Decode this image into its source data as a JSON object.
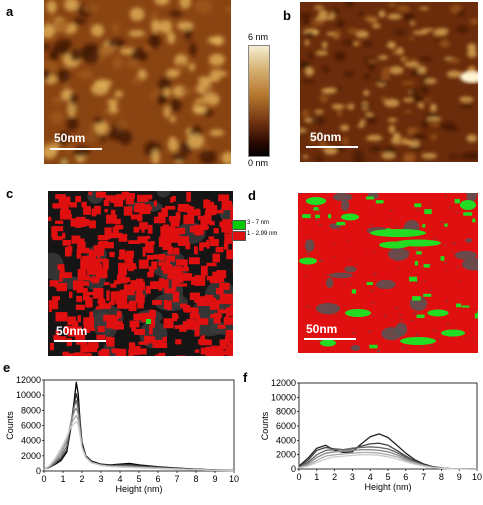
{
  "panels": {
    "a": "a",
    "b": "b",
    "c": "c",
    "d": "d",
    "e": "e",
    "f": "f"
  },
  "scale_bar_label": "50nm",
  "colorbar": {
    "top_label": "6 nm",
    "bottom_label": "0 nm"
  },
  "legend": [
    {
      "label": "3 - 7 nm",
      "color": "#00cc00"
    },
    {
      "label": "1 - 2.99 nm",
      "color": "#dd1111"
    }
  ],
  "afm_colors": {
    "dark": "#3a1505",
    "mid": "#a0581d",
    "bright": "#e7b85e"
  },
  "mask_colors": {
    "red": "#e01010",
    "green": "#22dd22",
    "gray": "#555555"
  },
  "chart_data": [
    {
      "type": "line",
      "panel": "e",
      "xlabel": "Height (nm)",
      "ylabel": "Counts",
      "xlim": [
        0,
        10
      ],
      "ylim": [
        0,
        12000
      ],
      "xticks": [
        0,
        1,
        2,
        3,
        4,
        5,
        6,
        7,
        8,
        9,
        10
      ],
      "yticks": [
        0,
        2000,
        4000,
        6000,
        8000,
        10000,
        12000
      ],
      "x": [
        0,
        0.3,
        0.6,
        0.9,
        1.2,
        1.4,
        1.6,
        1.7,
        1.8,
        1.9,
        2.0,
        2.2,
        2.5,
        3.0,
        3.5,
        4.0,
        4.5,
        5.0,
        6.0,
        7.0,
        8.0,
        9.0,
        10.0
      ],
      "series": [
        {
          "color": "#000000",
          "values": [
            300,
            500,
            900,
            1400,
            2500,
            5500,
            9500,
            11700,
            10200,
            6500,
            3800,
            2000,
            1300,
            900,
            800,
            900,
            1000,
            800,
            550,
            400,
            250,
            150,
            100
          ]
        },
        {
          "color": "#333333",
          "values": [
            250,
            500,
            1000,
            1600,
            2800,
            6000,
            9000,
            10200,
            9000,
            6000,
            3500,
            1900,
            1200,
            850,
            750,
            800,
            850,
            700,
            500,
            350,
            220,
            140,
            90
          ]
        },
        {
          "color": "#666666",
          "values": [
            250,
            550,
            1100,
            1900,
            3300,
            6200,
            8600,
            9300,
            8200,
            5600,
            3300,
            1800,
            1150,
            800,
            700,
            700,
            700,
            600,
            450,
            320,
            200,
            120,
            80
          ]
        },
        {
          "color": "#8a8a8a",
          "values": [
            200,
            600,
            1300,
            2300,
            3900,
            6300,
            7900,
            8300,
            7500,
            5300,
            3200,
            1800,
            1100,
            780,
            650,
            620,
            600,
            520,
            400,
            300,
            190,
            110,
            70
          ]
        },
        {
          "color": "#b0b0b0",
          "values": [
            200,
            700,
            1500,
            2700,
            4300,
            6000,
            7000,
            7300,
            6700,
            5000,
            3100,
            1800,
            1100,
            750,
            600,
            550,
            520,
            450,
            350,
            260,
            170,
            100,
            60
          ]
        },
        {
          "color": "#cccccc",
          "values": [
            180,
            750,
            1700,
            3000,
            4500,
            5700,
            6300,
            6500,
            6100,
            4700,
            3000,
            1800,
            1100,
            720,
            580,
            520,
            480,
            420,
            330,
            240,
            160,
            90,
            50
          ]
        }
      ]
    },
    {
      "type": "line",
      "panel": "f",
      "xlabel": "Height (nm)",
      "ylabel": "Counts",
      "xlim": [
        0,
        10
      ],
      "ylim": [
        0,
        12000
      ],
      "xticks": [
        0,
        1,
        2,
        3,
        4,
        5,
        6,
        7,
        8,
        9,
        10
      ],
      "yticks": [
        0,
        2000,
        4000,
        6000,
        8000,
        10000,
        12000
      ],
      "x": [
        0,
        0.5,
        1.0,
        1.5,
        2.0,
        2.5,
        3.0,
        3.5,
        4.0,
        4.5,
        5.0,
        5.5,
        6.0,
        6.5,
        7.0,
        7.5,
        8.0,
        8.5,
        9.0,
        9.5,
        10.0
      ],
      "series": [
        {
          "color": "#222222",
          "values": [
            400,
            1500,
            2900,
            3300,
            2600,
            2300,
            2400,
            3500,
            4500,
            4900,
            4400,
            3300,
            2200,
            1300,
            700,
            350,
            150,
            60,
            30,
            10,
            5
          ]
        },
        {
          "color": "#444444",
          "values": [
            300,
            1200,
            2600,
            3000,
            2800,
            2700,
            2800,
            3200,
            3500,
            3600,
            3300,
            2600,
            1800,
            1100,
            600,
            300,
            130,
            50,
            25,
            10,
            5
          ]
        },
        {
          "color": "#666666",
          "values": [
            250,
            900,
            2000,
            2600,
            2700,
            2700,
            2900,
            3000,
            3100,
            3000,
            2800,
            2300,
            1600,
            1000,
            550,
            280,
            120,
            50,
            20,
            8,
            4
          ]
        },
        {
          "color": "#888888",
          "values": [
            200,
            700,
            1600,
            2200,
            2400,
            2500,
            2600,
            2700,
            2700,
            2600,
            2400,
            2000,
            1400,
            900,
            500,
            250,
            110,
            45,
            18,
            7,
            3
          ]
        },
        {
          "color": "#aaaaaa",
          "values": [
            150,
            500,
            1200,
            1800,
            2000,
            2100,
            2200,
            2300,
            2300,
            2200,
            2000,
            1700,
            1200,
            800,
            450,
            220,
            100,
            40,
            15,
            6,
            3
          ]
        },
        {
          "color": "#cccccc",
          "values": [
            120,
            400,
            900,
            1400,
            1700,
            1800,
            1900,
            2000,
            2000,
            1900,
            1700,
            1400,
            1000,
            650,
            380,
            190,
            80,
            30,
            12,
            5,
            2
          ]
        }
      ]
    }
  ]
}
